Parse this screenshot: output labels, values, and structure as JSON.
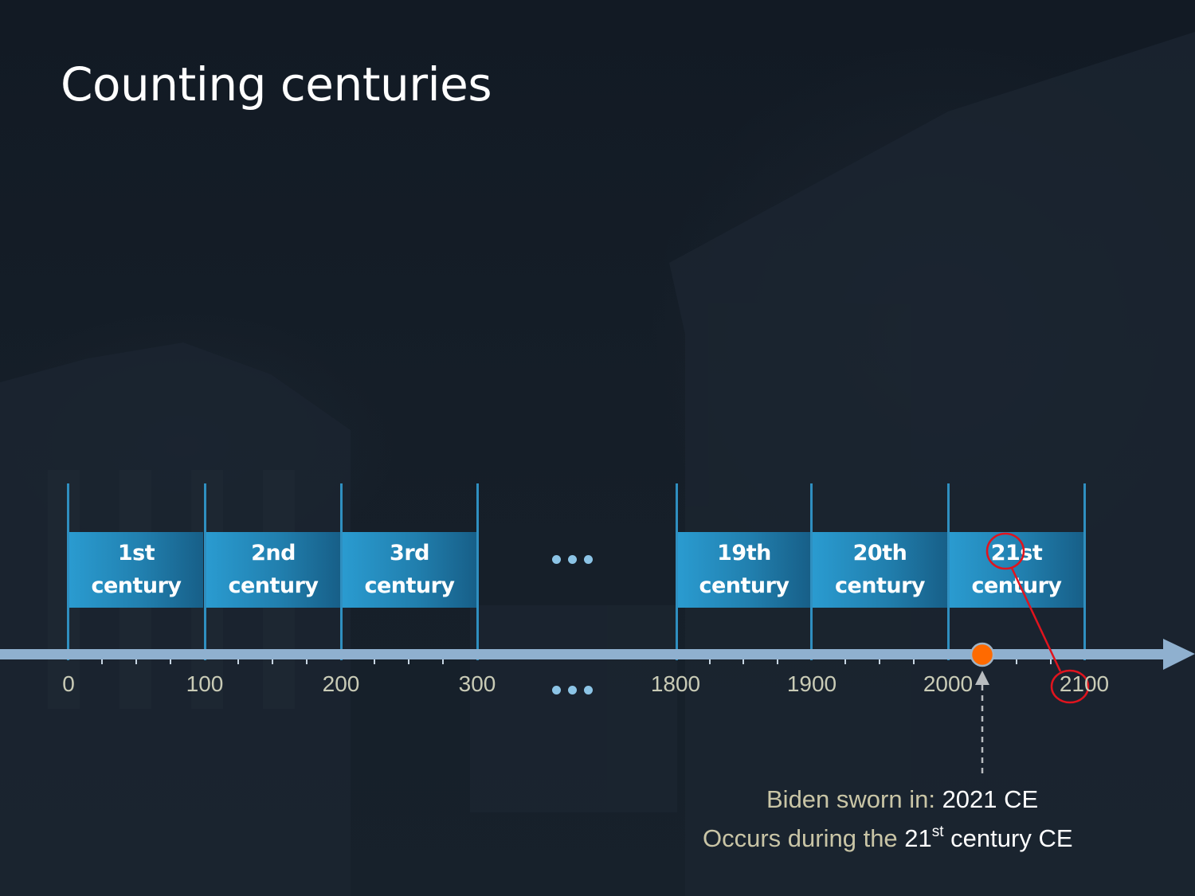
{
  "slide": {
    "title": "Counting centuries"
  },
  "timeline": {
    "centuries": [
      {
        "ordinal": "1st",
        "word": "century"
      },
      {
        "ordinal": "2nd",
        "word": "century"
      },
      {
        "ordinal": "3rd",
        "word": "century"
      },
      {
        "ordinal": "19th",
        "word": "century"
      },
      {
        "ordinal": "20th",
        "word": "century"
      },
      {
        "ordinal": "21st",
        "word": "century"
      }
    ],
    "tick_labels": [
      "0",
      "100",
      "200",
      "300",
      "1800",
      "1900",
      "2000",
      "2100"
    ],
    "ellipsis": "...",
    "event_year": 2021
  },
  "note": {
    "line1_prefix": "Biden sworn in: ",
    "line1_value": "2021 CE",
    "line2_prefix": "Occurs during the ",
    "line2_number": "21",
    "line2_suffix": "st",
    "line2_tail": " century CE"
  },
  "colors": {
    "background": "#141c26",
    "axis": "#8fb0cf",
    "century_box": "#2a9bd0",
    "event_marker": "#ff6a00",
    "annotation_red": "#e0141e",
    "muted_text": "#c9c5a6"
  }
}
